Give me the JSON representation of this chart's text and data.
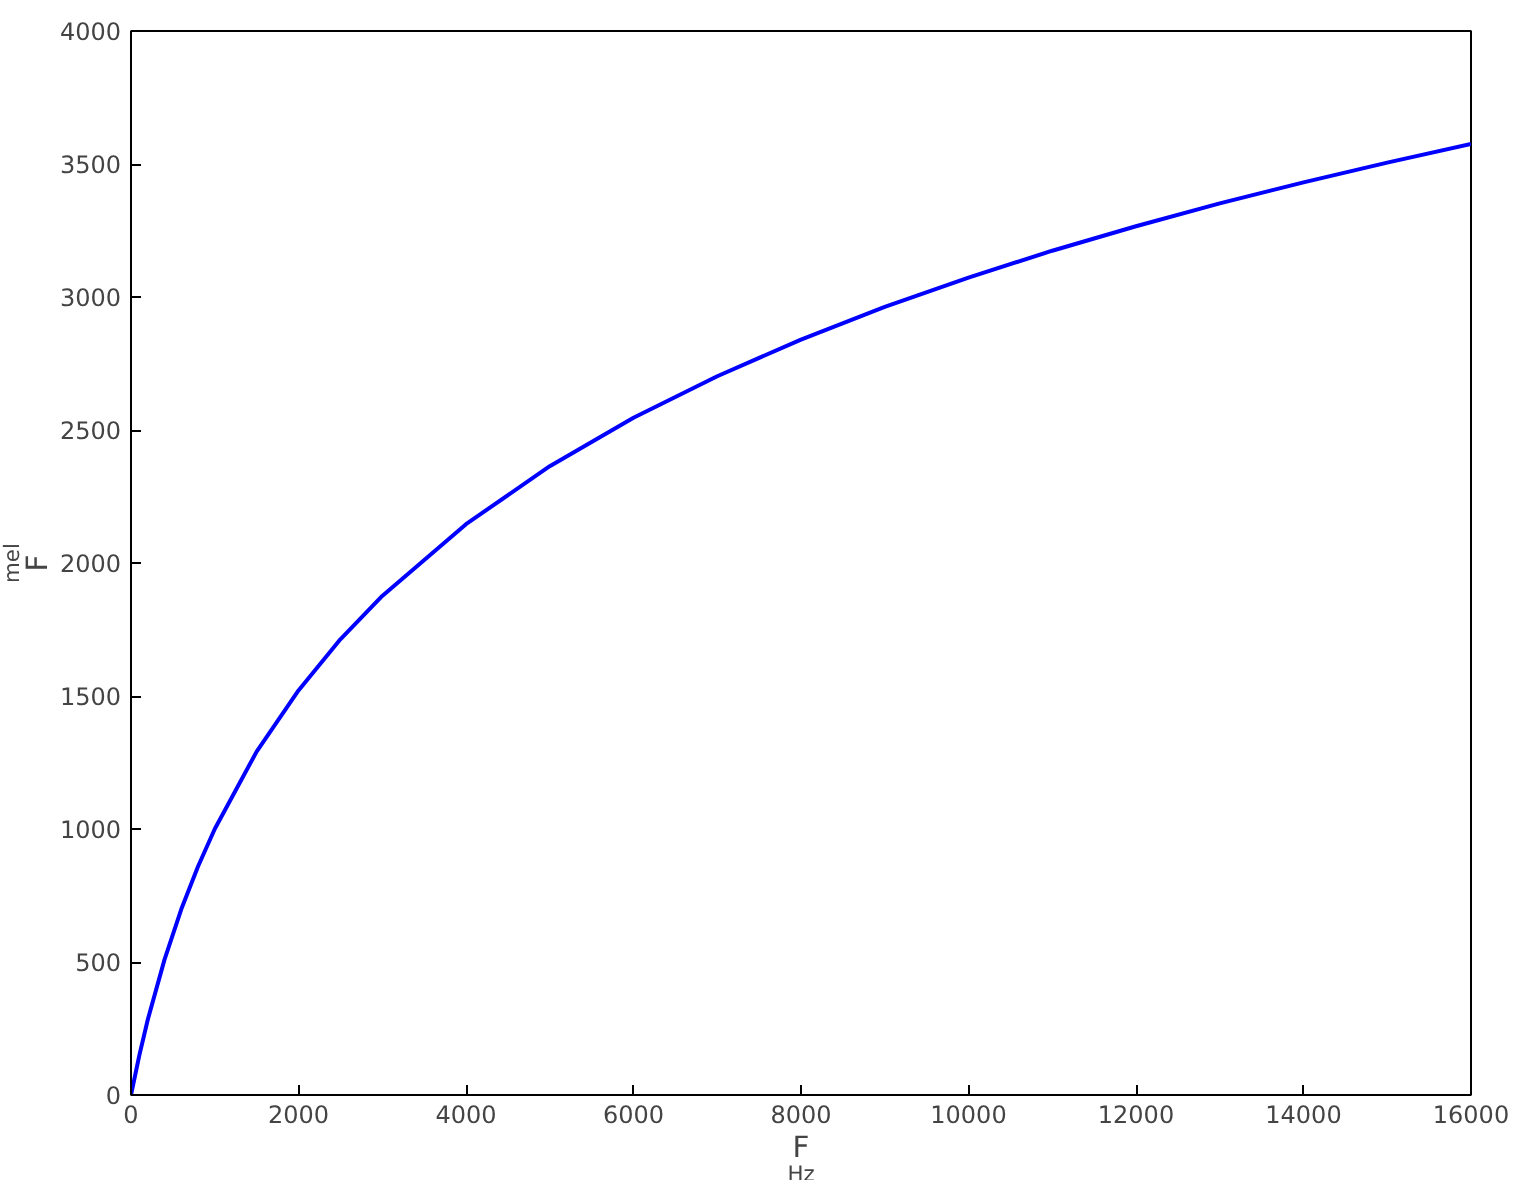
{
  "chart_data": {
    "type": "line",
    "xlabel": "F$_{Hz}$",
    "ylabel": "F$_{mel}$",
    "x": [
      0,
      100,
      200,
      400,
      600,
      800,
      1000,
      1500,
      2000,
      2500,
      3000,
      4000,
      5000,
      6000,
      7000,
      8000,
      9000,
      10000,
      11000,
      12000,
      13000,
      14000,
      15000,
      16000
    ],
    "series": [
      {
        "color": "#0000ff",
        "values": [
          0,
          150,
          283,
          509,
          698,
          859,
          1000,
          1291,
          1521,
          1713,
          1876,
          2146,
          2364,
          2546,
          2702,
          2840,
          2963,
          3073,
          3174,
          3266,
          3352,
          3431,
          3505,
          3575
        ]
      }
    ],
    "xlim": [
      0,
      16000
    ],
    "ylim": [
      0,
      4000
    ],
    "xticks": [
      0,
      2000,
      4000,
      6000,
      8000,
      10000,
      12000,
      14000,
      16000
    ],
    "yticks": [
      0,
      500,
      1000,
      1500,
      2000,
      2500,
      3000,
      3500,
      4000
    ],
    "grid": false,
    "marker": "none",
    "line_style": "solid"
  }
}
